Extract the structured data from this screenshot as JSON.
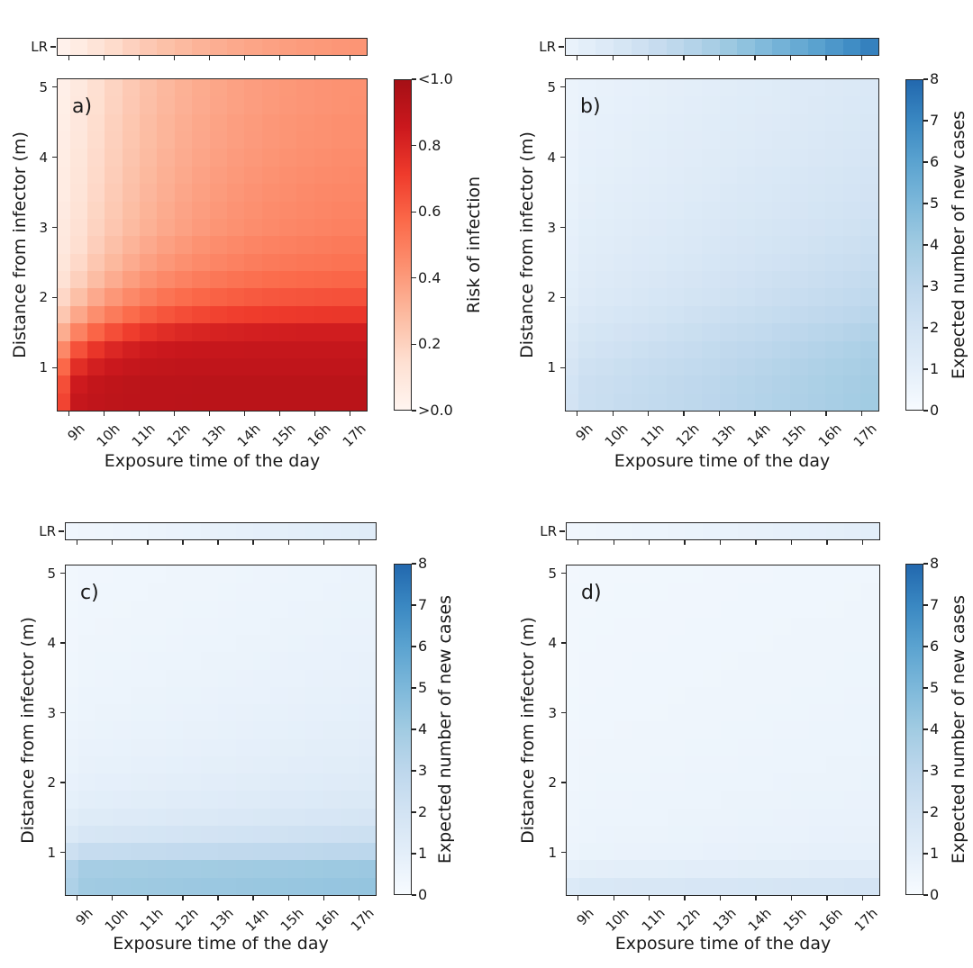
{
  "figure": {
    "background": "#ffffff",
    "text_color": "#1a1a1a",
    "axis_color": "#262626"
  },
  "colormaps": {
    "reds": [
      "#fff5f0",
      "#fee0d2",
      "#fcbba1",
      "#fc9272",
      "#fb6a4a",
      "#ef3b2c",
      "#cb181d",
      "#a50f15"
    ],
    "blues": [
      "#f7fbff",
      "#e3eef9",
      "#d2e3f3",
      "#bdd7ec",
      "#a1cbe2",
      "#7db8da",
      "#5ba3d0",
      "#3a88c2",
      "#2268ae"
    ]
  },
  "chart_data": {
    "type": "heatmap",
    "layout": "2x2 grid of pcolormesh panels, each with a one-row 'LR' strip heatmap above and a vertical colorbar to the right",
    "x_axis": {
      "label": "Exposure time of the day",
      "tick_labels": [
        "9h",
        "10h",
        "11h",
        "12h",
        "13h",
        "14h",
        "15h",
        "16h",
        "17h"
      ],
      "range_hours": [
        8.75,
        17.5
      ],
      "cell_width_hours": 0.5
    },
    "y_axis": {
      "label": "Distance from infector (m)",
      "tick_labels": [
        "1",
        "2",
        "3",
        "4",
        "5"
      ],
      "range_m": [
        0.35,
        5.15
      ],
      "cell_height_m": 0.25
    },
    "value_model": "cell value v(t) = v17_5 - (v17_5 - v9) * exp(-(t - 9)/tau_h); tau_h >= 99 means linear ramp from v9 at 9h to v17_5 at 17.5h; the narrow first column (8.75h) = v9 * first_col_factor; rows format: [distance_m, v9, v17_5, tau_h]",
    "panels": [
      {
        "id": "a",
        "label": "a)",
        "colormap": "reds",
        "vmin": 0,
        "vmax": 1,
        "first_col_factor": 0.8,
        "x_label": "Exposure time of the day",
        "y_label": "Distance from infector (m)",
        "x_tick_labels": [
          "9h",
          "10h",
          "11h",
          "12h",
          "13h",
          "14h",
          "15h",
          "16h",
          "17h"
        ],
        "y_tick_labels": [
          "1",
          "2",
          "3",
          "4",
          "5"
        ],
        "colorbar": {
          "label": "Risk of infection",
          "tick_labels_top_to_bottom": [
            "<1.0",
            "0.8",
            "0.6",
            "0.4",
            "0.2",
            ">0.0"
          ]
        },
        "lr_strip": {
          "label": "LR",
          "v9": 0.03,
          "v17_5": 0.46,
          "tau_h": 3.5
        },
        "rows": [
          [
            5.0,
            0.05,
            0.46,
            3.0
          ],
          [
            4.75,
            0.055,
            0.46,
            3.0
          ],
          [
            4.5,
            0.06,
            0.47,
            3.0
          ],
          [
            4.25,
            0.065,
            0.47,
            3.0
          ],
          [
            4.0,
            0.07,
            0.48,
            3.0
          ],
          [
            3.75,
            0.075,
            0.49,
            3.0
          ],
          [
            3.5,
            0.08,
            0.5,
            3.0
          ],
          [
            3.25,
            0.09,
            0.51,
            3.0
          ],
          [
            3.0,
            0.1,
            0.52,
            3.0
          ],
          [
            2.75,
            0.11,
            0.54,
            2.8
          ],
          [
            2.5,
            0.13,
            0.56,
            2.6
          ],
          [
            2.25,
            0.16,
            0.6,
            2.4
          ],
          [
            2.0,
            0.22,
            0.66,
            2.2
          ],
          [
            1.75,
            0.3,
            0.74,
            1.9
          ],
          [
            1.5,
            0.42,
            0.84,
            1.5
          ],
          [
            1.25,
            0.58,
            0.88,
            1.0
          ],
          [
            1.0,
            0.72,
            0.9,
            0.8
          ],
          [
            0.75,
            0.82,
            0.92,
            0.7
          ],
          [
            0.5,
            0.86,
            0.92,
            0.7
          ]
        ]
      },
      {
        "id": "b",
        "label": "b)",
        "colormap": "blues",
        "vmin": 0,
        "vmax": 8,
        "first_col_factor": 0.85,
        "x_label": "Exposure time of the day",
        "y_label": "Distance from infector (m)",
        "x_tick_labels": [
          "9h",
          "10h",
          "11h",
          "12h",
          "13h",
          "14h",
          "15h",
          "16h",
          "17h"
        ],
        "y_tick_labels": [
          "1",
          "2",
          "3",
          "4",
          "5"
        ],
        "colorbar": {
          "label": "Expected number of new cases",
          "tick_labels_top_to_bottom": [
            "8",
            "7",
            "6",
            "5",
            "4",
            "3",
            "2",
            "1",
            "0"
          ]
        },
        "lr_strip": {
          "label": "LR",
          "v9": 0.8,
          "v17_5": 7.4,
          "tau_h": 99
        },
        "rows": [
          [
            5.0,
            0.7,
            1.55,
            99
          ],
          [
            4.75,
            0.72,
            1.6,
            99
          ],
          [
            4.5,
            0.75,
            1.67,
            99
          ],
          [
            4.25,
            0.78,
            1.74,
            99
          ],
          [
            4.0,
            0.81,
            1.82,
            99
          ],
          [
            3.75,
            0.85,
            1.91,
            99
          ],
          [
            3.5,
            0.89,
            2.0,
            99
          ],
          [
            3.25,
            0.94,
            2.1,
            99
          ],
          [
            3.0,
            1.0,
            2.22,
            99
          ],
          [
            2.75,
            1.06,
            2.36,
            99
          ],
          [
            2.5,
            1.13,
            2.52,
            99
          ],
          [
            2.25,
            1.22,
            2.7,
            99
          ],
          [
            2.0,
            1.32,
            2.9,
            99
          ],
          [
            1.75,
            1.5,
            3.15,
            99
          ],
          [
            1.5,
            1.7,
            3.45,
            99
          ],
          [
            1.25,
            1.9,
            3.7,
            99
          ],
          [
            1.0,
            2.1,
            3.85,
            99
          ],
          [
            0.75,
            2.25,
            3.95,
            99
          ],
          [
            0.5,
            2.3,
            4.0,
            99
          ]
        ]
      },
      {
        "id": "c",
        "label": "c)",
        "colormap": "blues",
        "vmin": 0,
        "vmax": 8,
        "first_col_factor": 0.88,
        "x_label": "Exposure time of the day",
        "y_label": "Distance from infector (m)",
        "x_tick_labels": [
          "9h",
          "10h",
          "11h",
          "12h",
          "13h",
          "14h",
          "15h",
          "16h",
          "17h"
        ],
        "y_tick_labels": [
          "1",
          "2",
          "3",
          "4",
          "5"
        ],
        "colorbar": {
          "label": "Expected number of new cases",
          "tick_labels_top_to_bottom": [
            "8",
            "7",
            "6",
            "5",
            "4",
            "3",
            "2",
            "1",
            "0"
          ]
        },
        "lr_strip": {
          "label": "LR",
          "v9": 0.4,
          "v17_5": 1.2,
          "tau_h": 99
        },
        "rows": [
          [
            5.0,
            0.35,
            0.6,
            99
          ],
          [
            4.75,
            0.36,
            0.62,
            99
          ],
          [
            4.5,
            0.38,
            0.65,
            99
          ],
          [
            4.25,
            0.4,
            0.68,
            99
          ],
          [
            4.0,
            0.42,
            0.72,
            99
          ],
          [
            3.75,
            0.45,
            0.76,
            99
          ],
          [
            3.5,
            0.48,
            0.8,
            99
          ],
          [
            3.25,
            0.52,
            0.85,
            99
          ],
          [
            3.0,
            0.56,
            0.91,
            99
          ],
          [
            2.75,
            0.61,
            0.98,
            99
          ],
          [
            2.5,
            0.67,
            1.06,
            99
          ],
          [
            2.25,
            0.74,
            1.16,
            99
          ],
          [
            2.0,
            0.85,
            1.3,
            99
          ],
          [
            1.75,
            1.0,
            1.5,
            99
          ],
          [
            1.5,
            1.25,
            1.8,
            99
          ],
          [
            1.25,
            1.7,
            2.3,
            99
          ],
          [
            1.0,
            2.55,
            3.05,
            99
          ],
          [
            0.75,
            3.8,
            4.15,
            99
          ],
          [
            0.5,
            4.0,
            4.35,
            99
          ]
        ]
      },
      {
        "id": "d",
        "label": "d)",
        "colormap": "blues",
        "vmin": 0,
        "vmax": 8,
        "first_col_factor": 0.9,
        "x_label": "Exposure time of the day",
        "y_label": "Distance from infector (m)",
        "x_tick_labels": [
          "9h",
          "10h",
          "11h",
          "12h",
          "13h",
          "14h",
          "15h",
          "16h",
          "17h"
        ],
        "y_tick_labels": [
          "1",
          "2",
          "3",
          "4",
          "5"
        ],
        "colorbar": {
          "label": "Expected number of new cases",
          "tick_labels_top_to_bottom": [
            "8",
            "7",
            "6",
            "5",
            "4",
            "3",
            "2",
            "1",
            "0"
          ]
        },
        "lr_strip": {
          "label": "LR",
          "v9": 0.4,
          "v17_5": 1.05,
          "tau_h": 99
        },
        "rows": [
          [
            5.0,
            0.3,
            0.42,
            99
          ],
          [
            4.75,
            0.31,
            0.43,
            99
          ],
          [
            4.5,
            0.32,
            0.44,
            99
          ],
          [
            4.25,
            0.33,
            0.46,
            99
          ],
          [
            4.0,
            0.34,
            0.47,
            99
          ],
          [
            3.75,
            0.35,
            0.49,
            99
          ],
          [
            3.5,
            0.36,
            0.5,
            99
          ],
          [
            3.25,
            0.37,
            0.52,
            99
          ],
          [
            3.0,
            0.38,
            0.54,
            99
          ],
          [
            2.75,
            0.4,
            0.56,
            99
          ],
          [
            2.5,
            0.42,
            0.58,
            99
          ],
          [
            2.25,
            0.44,
            0.61,
            99
          ],
          [
            2.0,
            0.46,
            0.64,
            99
          ],
          [
            1.75,
            0.49,
            0.68,
            99
          ],
          [
            1.5,
            0.52,
            0.72,
            99
          ],
          [
            1.25,
            0.56,
            0.78,
            99
          ],
          [
            1.0,
            0.62,
            0.88,
            99
          ],
          [
            0.75,
            0.95,
            1.2,
            99
          ],
          [
            0.5,
            1.55,
            1.9,
            99
          ]
        ]
      }
    ]
  }
}
